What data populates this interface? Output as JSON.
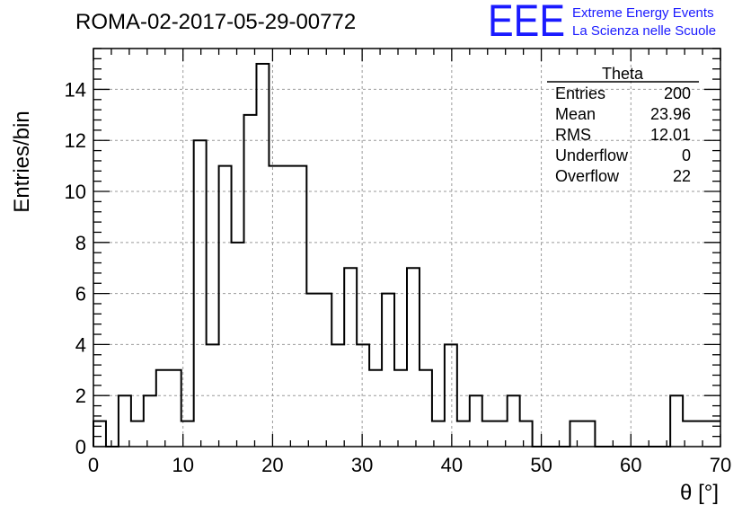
{
  "page": {
    "run_title": "ROMA-02-2017-05-29-00772",
    "logo": {
      "letters": "EEE",
      "line1": "Extreme Energy Events",
      "line2": "La Scienza nelle Scuole",
      "color": "#1a1aff"
    }
  },
  "chart_data": {
    "type": "bar",
    "style": "step-histogram",
    "title": "ROMA-02-2017-05-29-00772",
    "xlabel": "θ [°]",
    "ylabel": "Entries/bin",
    "xlim": [
      0,
      70
    ],
    "ylim": [
      0,
      15.6
    ],
    "grid": true,
    "bin_width": 1.4,
    "x_ticks": [
      0,
      10,
      20,
      30,
      40,
      50,
      60,
      70
    ],
    "y_ticks": [
      0,
      2,
      4,
      6,
      8,
      10,
      12,
      14
    ],
    "x_tick_labels": [
      "0",
      "10",
      "20",
      "30",
      "40",
      "50",
      "60",
      "70"
    ],
    "y_tick_labels": [
      "0",
      "2",
      "4",
      "6",
      "8",
      "10",
      "12",
      "14"
    ],
    "series": [
      {
        "values": [
          1,
          0,
          2,
          1,
          2,
          3,
          3,
          1,
          12,
          4,
          11,
          8,
          13,
          15,
          11,
          11,
          11,
          6,
          6,
          4,
          7,
          4,
          3,
          6,
          3,
          7,
          3,
          1,
          4,
          1,
          2,
          1,
          1,
          2,
          1,
          0,
          0,
          0,
          1,
          1,
          0,
          0,
          0,
          0,
          0,
          0,
          2,
          1,
          1,
          1
        ]
      }
    ],
    "stats_box": {
      "name": "Theta",
      "rows": [
        {
          "label": "Entries",
          "value": "200"
        },
        {
          "label": "Mean",
          "value": "23.96"
        },
        {
          "label": "RMS",
          "value": "12.01"
        },
        {
          "label": "Underflow",
          "value": "0"
        },
        {
          "label": "Overflow",
          "value": "22"
        }
      ]
    }
  }
}
